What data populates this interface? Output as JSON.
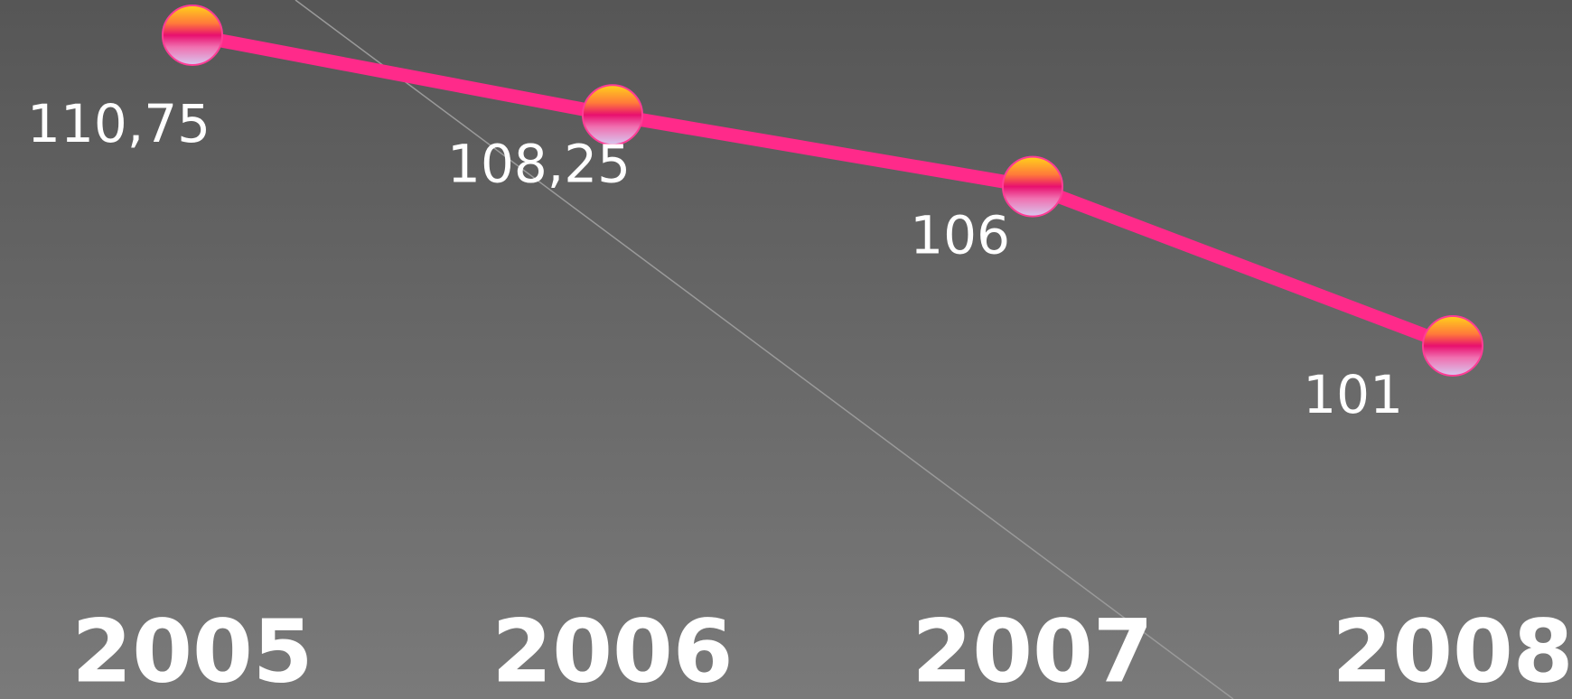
{
  "chart_data": {
    "type": "line",
    "categories": [
      "2005",
      "2006",
      "2007",
      "2008"
    ],
    "series": [
      {
        "color": "#ff2a8a",
        "values": [
          110.75,
          108.25,
          106,
          101
        ],
        "value_labels": [
          "110,75",
          "108,25",
          "106",
          "101"
        ]
      }
    ]
  }
}
